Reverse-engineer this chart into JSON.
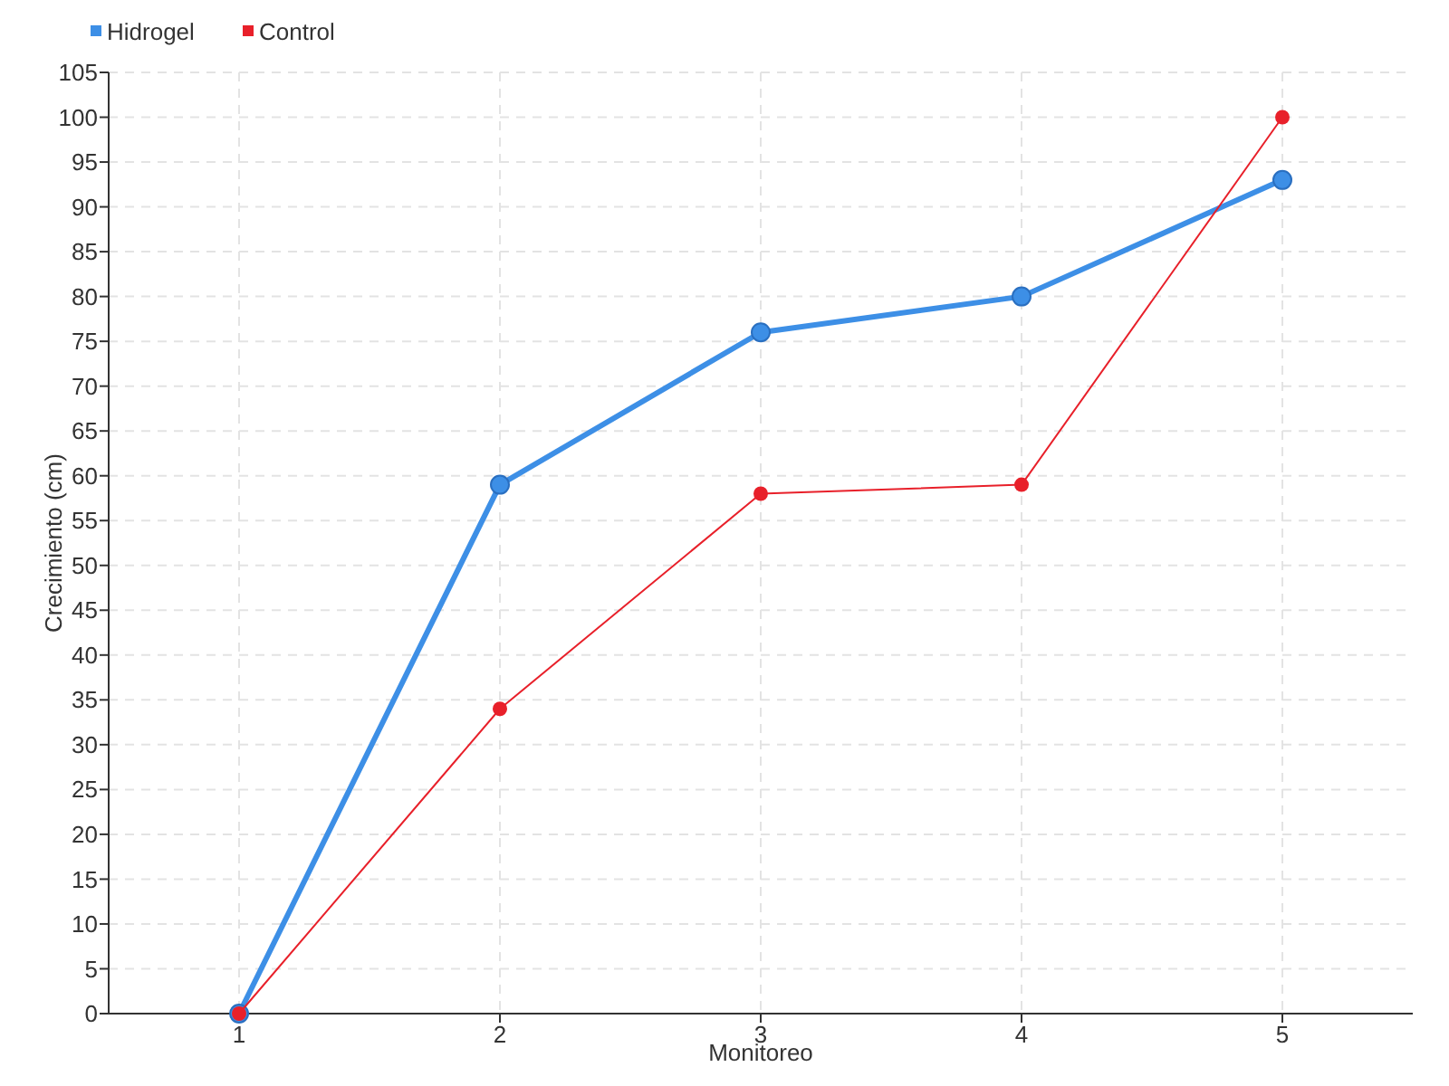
{
  "chart_data": {
    "type": "line",
    "xlabel": "Monitoreo",
    "ylabel": "Crecimiento (cm)",
    "categories": [
      "1",
      "2",
      "3",
      "4",
      "5"
    ],
    "series": [
      {
        "name": "Hidrogel",
        "color": "#3d8fe6",
        "values": [
          0,
          59,
          76,
          80,
          93
        ]
      },
      {
        "name": "Control",
        "color": "#e8202a",
        "values": [
          0,
          34,
          58,
          59,
          100
        ]
      }
    ],
    "ylim": [
      0,
      105
    ],
    "yticks": [
      0,
      5,
      10,
      15,
      20,
      25,
      30,
      35,
      40,
      45,
      50,
      55,
      60,
      65,
      70,
      75,
      80,
      85,
      90,
      95,
      100,
      105
    ],
    "grid": true,
    "legend": "top left",
    "marker": "circle",
    "line_style": "solid"
  }
}
